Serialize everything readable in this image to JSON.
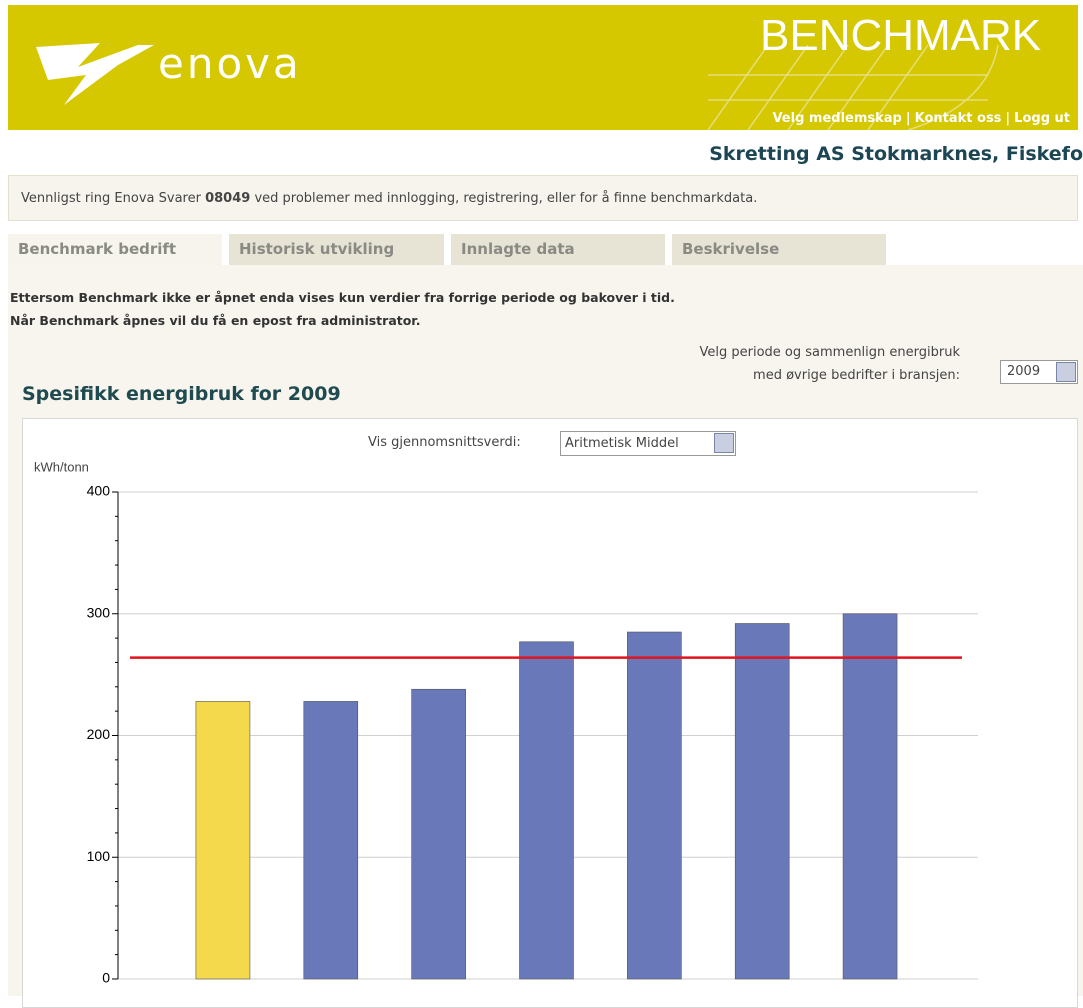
{
  "header": {
    "logo": "enova",
    "brand": "BENCHMARK",
    "links": [
      "Velg medlemskap",
      "Kontakt oss",
      "Logg ut"
    ]
  },
  "company": "Skretting AS Stokmarknes, Fiskefo",
  "notice": {
    "before": "Vennligst ring Enova Svarer",
    "phone": "08049",
    "after": "ved problemer med innlogging, registrering, eller for å finne benchmarkdata."
  },
  "tabs": [
    "Benchmark bedrift",
    "Historisk utvikling",
    "Innlagte data",
    "Beskrivelse"
  ],
  "message": [
    "Ettersom Benchmark ikke er åpnet enda vises kun verdier fra forrige periode og bakover i tid.",
    "Når Benchmark åpnes vil du få en epost fra administrator."
  ],
  "period": {
    "label": [
      "Velg periode og sammenlign energibruk",
      "med øvrige bedrifter i bransjen:"
    ],
    "selected": "2009"
  },
  "chart_title": "Spesifikk energibruk for 2009",
  "average_selector": {
    "label": "Vis gjennomsnittsverdi:",
    "selected": "Aritmetisk Middel"
  },
  "chart_data": {
    "type": "bar",
    "y_label": "kWh/tonn",
    "categories": [
      null,
      null,
      null,
      null,
      null,
      null,
      null
    ],
    "values": [
      228,
      228,
      238,
      277,
      285,
      292,
      300
    ],
    "colors": [
      "#f4d94c",
      "#6878b9",
      "#6878b9",
      "#6878b9",
      "#6878b9",
      "#6878b9",
      "#6878b9"
    ],
    "average": 264,
    "average_color": "#e0141e",
    "ylim": [
      0,
      400
    ],
    "yticks": [
      0,
      100,
      200,
      300,
      400
    ],
    "minor_yticks": [
      20,
      40,
      60,
      80,
      120,
      140,
      160,
      180,
      220,
      240,
      260,
      280,
      320,
      340,
      360,
      380
    ],
    "grid": true
  }
}
